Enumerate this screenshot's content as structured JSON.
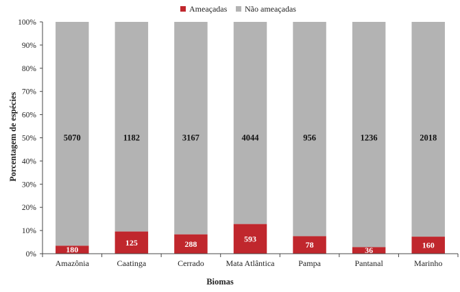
{
  "chart_data": {
    "type": "bar",
    "stacked": "percent",
    "xlabel": "Biomas",
    "ylabel": "Porcentagem de espécies",
    "ylim": [
      0,
      100
    ],
    "yticks": [
      "0%",
      "10%",
      "20%",
      "30%",
      "40%",
      "50%",
      "60%",
      "70%",
      "80%",
      "90%",
      "100%"
    ],
    "legend_position": "top-center",
    "grid": false,
    "categories": [
      "Amazônia",
      "Caatinga",
      "Cerrado",
      "Mata Atlântica",
      "Pampa",
      "Pantanal",
      "Marinho"
    ],
    "series": [
      {
        "name": "Ameaçadas",
        "color": "#c0272d",
        "values": [
          180,
          125,
          288,
          593,
          78,
          36,
          160
        ]
      },
      {
        "name": "Não ameaçadas",
        "color": "#b3b3b3",
        "values": [
          5070,
          1182,
          3167,
          4044,
          956,
          1236,
          2018
        ]
      }
    ]
  }
}
